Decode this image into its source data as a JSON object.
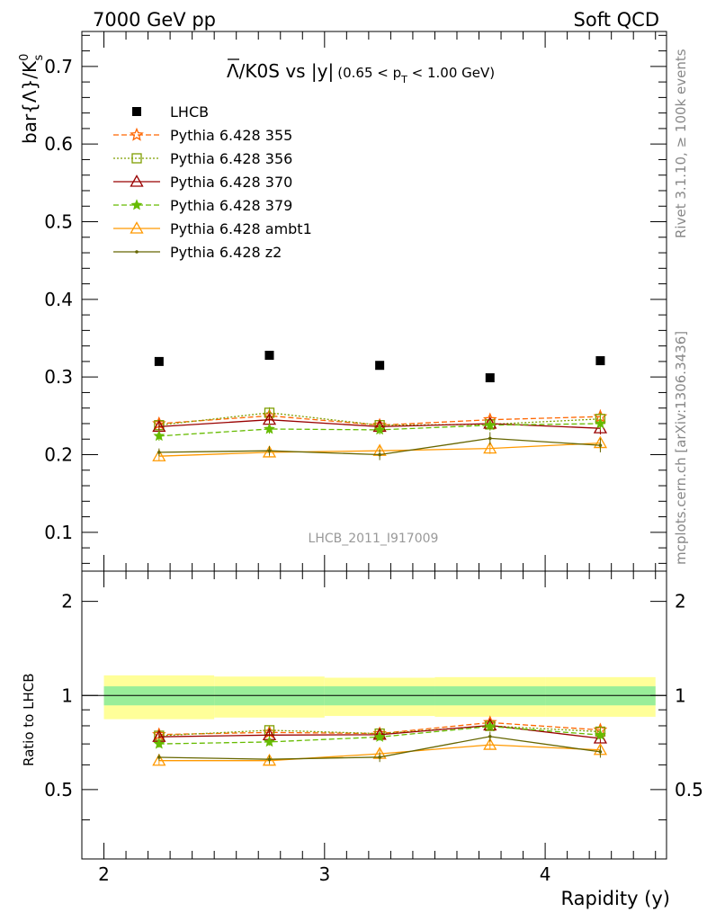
{
  "header": {
    "left": "7000 GeV pp",
    "right": "Soft QCD"
  },
  "side_labels": {
    "rivet": "Rivet 3.1.10, ≥ 100k events",
    "mcplots": "mcplots.cern.ch [arXiv:1306.3436]"
  },
  "watermark": "LHCB_2011_I917009",
  "chart_data": {
    "type": "scatter",
    "title": "Λ̅/K0S vs |y|",
    "title_parts": {
      "main": "Λ/K0S vs |y|",
      "range_open": "(0.65 < p",
      "range_sub": "T",
      "range_close": " < 1.00 GeV)"
    },
    "xlabel": "Rapidity (y)",
    "ylabel": "bar{Λ}/K",
    "ylabel_sup": "0",
    "ylabel_sub": "s",
    "ratio_ylabel": "Ratio to LHCB",
    "xlim": [
      1.9,
      4.55
    ],
    "ylim": [
      0.05,
      0.745
    ],
    "ratio_ylim": [
      0.3,
      2.5
    ],
    "x_ticks": [
      "2",
      "3",
      "4"
    ],
    "y_ticks": [
      "0.1",
      "0.2",
      "0.3",
      "0.4",
      "0.5",
      "0.6",
      "0.7"
    ],
    "ratio_y_ticks": [
      "0.5",
      "1",
      "2"
    ],
    "x": [
      2.25,
      2.75,
      3.25,
      3.75,
      4.25
    ],
    "x_edges": [
      2.0,
      2.5,
      3.0,
      3.5,
      4.0,
      4.5
    ],
    "data": {
      "name": "LHCB",
      "values": [
        0.32,
        0.328,
        0.315,
        0.299,
        0.321
      ],
      "band_inner": [
        0.07,
        0.07,
        0.07,
        0.07,
        0.07
      ],
      "band_outer": [
        0.16,
        0.15,
        0.14,
        0.145,
        0.145
      ]
    },
    "series": [
      {
        "name": "Pythia 6.428 355",
        "color": "#ff6600",
        "marker": "star-open",
        "dash": "6,3",
        "values": [
          0.24,
          0.25,
          0.238,
          0.245,
          0.249
        ],
        "err": [
          0.006,
          0.006,
          0.006,
          0.008,
          0.009
        ]
      },
      {
        "name": "Pythia 6.428 356",
        "color": "#7f9f00",
        "marker": "square-open",
        "dash": "2,2",
        "values": [
          0.238,
          0.254,
          0.238,
          0.239,
          0.246
        ],
        "err": [
          0.006,
          0.007,
          0.006,
          0.007,
          0.008
        ]
      },
      {
        "name": "Pythia 6.428 370",
        "color": "#990000",
        "marker": "triangle-open",
        "dash": "",
        "values": [
          0.236,
          0.245,
          0.236,
          0.24,
          0.234
        ],
        "err": [
          0.006,
          0.007,
          0.006,
          0.007,
          0.008
        ]
      },
      {
        "name": "Pythia 6.428 379",
        "color": "#66bb00",
        "marker": "star-filled",
        "dash": "6,3",
        "values": [
          0.224,
          0.233,
          0.232,
          0.238,
          0.24
        ],
        "err": [
          0.006,
          0.006,
          0.006,
          0.007,
          0.008
        ]
      },
      {
        "name": "Pythia 6.428 ambt1",
        "color": "#ff9900",
        "marker": "triangle-open",
        "dash": "",
        "values": [
          0.198,
          0.203,
          0.205,
          0.208,
          0.215
        ],
        "err": [
          0.006,
          0.006,
          0.006,
          0.007,
          0.008
        ]
      },
      {
        "name": "Pythia 6.428 z2",
        "color": "#666600",
        "marker": "dot",
        "dash": "",
        "values": [
          0.203,
          0.205,
          0.2,
          0.221,
          0.212
        ],
        "err": [
          0.005,
          0.006,
          0.007,
          0.008,
          0.009
        ]
      }
    ]
  }
}
